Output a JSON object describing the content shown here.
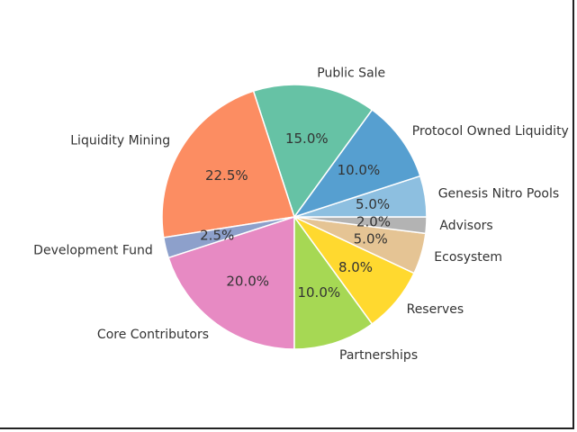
{
  "chart_data": {
    "type": "pie",
    "title": "",
    "slices": [
      {
        "label": "Public Sale",
        "value": 15.0,
        "pct_label": "15.0%",
        "color": "#66c2a5"
      },
      {
        "label": "Liquidity Mining",
        "value": 22.5,
        "pct_label": "22.5%",
        "color": "#fc8d62"
      },
      {
        "label": "Development Fund",
        "value": 2.5,
        "pct_label": "2.5%",
        "color": "#8da0cb"
      },
      {
        "label": "Core Contributors",
        "value": 20.0,
        "pct_label": "20.0%",
        "color": "#e78ac3"
      },
      {
        "label": "Partnerships",
        "value": 10.0,
        "pct_label": "10.0%",
        "color": "#a6d854"
      },
      {
        "label": "Reserves",
        "value": 8.0,
        "pct_label": "8.0%",
        "color": "#ffd92f"
      },
      {
        "label": "Ecosystem",
        "value": 5.0,
        "pct_label": "5.0%",
        "color": "#e5c494"
      },
      {
        "label": "Advisors",
        "value": 2.0,
        "pct_label": "2.0%",
        "color": "#b3b3b3"
      },
      {
        "label": "Genesis Nitro Pools",
        "value": 5.0,
        "pct_label": "5.0%",
        "color": "#8dbfe0"
      },
      {
        "label": "Protocol Owned Liquidity",
        "value": 10.0,
        "pct_label": "10.0%",
        "color": "#569fd0"
      }
    ]
  }
}
